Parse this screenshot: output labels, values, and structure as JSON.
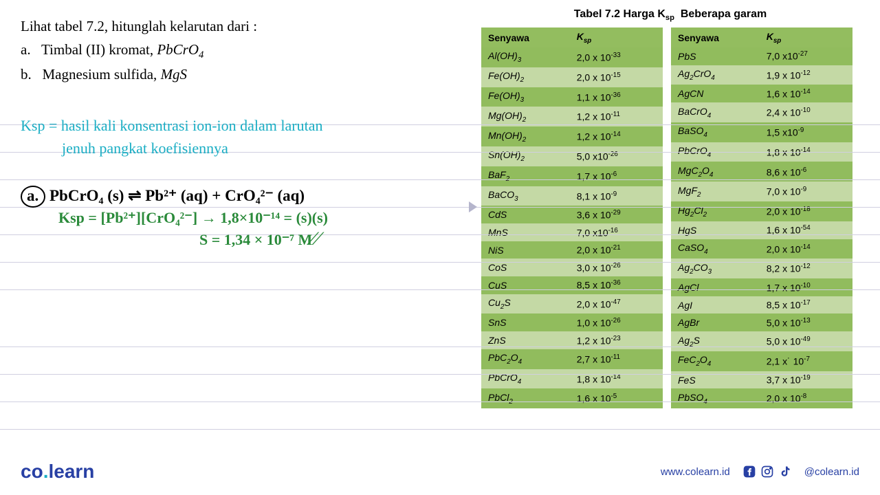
{
  "question": {
    "intro": "Lihat tabel 7.2, hitunglah kelarutan dari :",
    "item_a_label": "a.",
    "item_a_text": "Timbal (II) kromat,",
    "item_a_formula": "PbCrO",
    "item_a_sub": "4",
    "item_b_label": "b.",
    "item_b_text": "Magnesium sulfida,",
    "item_b_formula": "MgS"
  },
  "notes": {
    "definition_line1": "Ksp = hasil kali konsentrasi ion-ion dalam larutan",
    "definition_line2": "jenuh pangkat koefisiennya",
    "part_a_circle": "a.",
    "part_a_eq": "PbCrO₄ (s) ⇌ Pb²⁺ (aq) + CrO₄²⁻ (aq)",
    "part_a_ksp": "Ksp = [Pb²⁺][CrO₄²⁻] → 1,8×10⁻¹⁴ = (s)(s)",
    "part_a_result": "S = 1,34 × 10⁻⁷ M"
  },
  "table": {
    "title": "Tabel 7.2 Harga K",
    "title_sub": "sp",
    "title_rest": "Beberapa garam",
    "header_col1": "Senyawa",
    "header_col2_k": "K",
    "header_col2_sp": "sp",
    "left_rows": [
      {
        "c": "Al(OH)₃",
        "k": "2,0 x 10⁻³³"
      },
      {
        "c": "Fe(OH)₂",
        "k": "2,0 x 10⁻¹⁵"
      },
      {
        "c": "Fe(OH)₃",
        "k": "1,1 x 10⁻³⁶"
      },
      {
        "c": "Mg(OH)₂",
        "k": "1,2 x 10⁻¹¹"
      },
      {
        "c": "Mn(OH)₂",
        "k": "1,2 x 10⁻¹⁴"
      },
      {
        "c": "Sn(OH)₂",
        "k": "5,0 x10⁻²⁶"
      },
      {
        "c": "BaF₂",
        "k": "1,7 x 10⁻⁶"
      },
      {
        "c": "BaCO₃",
        "k": "8,1 x 10⁻⁹"
      },
      {
        "c": "CdS",
        "k": "3,6 x 10⁻²⁹"
      },
      {
        "c": "MnS",
        "k": "7,0 x10⁻¹⁶"
      },
      {
        "c": "NiS",
        "k": "2,0 x 10⁻²¹"
      },
      {
        "c": "CoS",
        "k": "3,0  x 10⁻²⁶"
      },
      {
        "c": "CuS",
        "k": "8,5  x 10⁻³⁶"
      },
      {
        "c": "Cu₂S",
        "k": "2,0  x 10⁻⁴⁷"
      },
      {
        "c": "SnS",
        "k": "1,0  x 10⁻²⁶"
      },
      {
        "c": "ZnS",
        "k": "1,2  x 10⁻²³"
      },
      {
        "c": "PbC₂O₄",
        "k": "2,7  x 10⁻¹¹"
      },
      {
        "c": "PbCrO₄",
        "k": "1,8  x 10⁻¹⁴"
      },
      {
        "c": "PbCl₂",
        "k": "1,6  x 10⁻⁵"
      }
    ],
    "right_rows": [
      {
        "c": "PbS",
        "k": "7,0 x10⁻²⁷"
      },
      {
        "c": "Ag₂CrO₄",
        "k": "1,9 x 10⁻¹²"
      },
      {
        "c": "AgCN",
        "k": "1,6 x 10⁻¹⁴"
      },
      {
        "c": "BaCrO₄",
        "k": "2,4  x 10⁻¹⁰"
      },
      {
        "c": "BaSO₄",
        "k": "1,5  x10⁻⁹"
      },
      {
        "c": "PbCrO₄",
        "k": "1,8  x 10⁻¹⁴"
      },
      {
        "c": "MgC₂O₄",
        "k": "8,6 x 10⁻⁶"
      },
      {
        "c": "MgF₂",
        "k": "7,0 x 10⁻⁹"
      },
      {
        "c": "Hg₂Cl₂",
        "k": "2,0 x 10⁻¹⁸"
      },
      {
        "c": "HgS",
        "k": "1,6 x 10⁻⁵⁴"
      },
      {
        "c": "CaSO₄",
        "k": "2,0 x 10⁻¹⁴"
      },
      {
        "c": "Ag₂CO₃",
        "k": "8,2 x 10⁻¹²"
      },
      {
        "c": "AgCl",
        "k": "1,7 x 10⁻¹⁰"
      },
      {
        "c": "AgI",
        "k": "8,5 x 10⁻¹⁷"
      },
      {
        "c": "AgBr",
        "k": "5,0 x 10⁻¹³"
      },
      {
        "c": "Ag₂S",
        "k": "5,0 x 10⁻⁴⁹"
      },
      {
        "c": "FeC₂O₄",
        "k": "2,1 x˙ 10⁻⁷"
      },
      {
        "c": "FeS",
        "k": "3,7 x 10⁻¹⁹"
      },
      {
        "c": "PbSO₄",
        "k": "2,0 x 10⁻⁸"
      }
    ]
  },
  "footer": {
    "logo_co": "co",
    "logo_dot": ".",
    "logo_learn": "learn",
    "website": "www.colearn.id",
    "handle": "@colearn.id"
  },
  "colors": {
    "teal": "#1aaec4",
    "green": "#2a8a3a",
    "blue": "#2840a4",
    "table_header": "#93bd5f",
    "table_row_light": "#c4d9a5",
    "table_row_dark": "#91bc5d",
    "ruled": "#d0cfe0"
  }
}
